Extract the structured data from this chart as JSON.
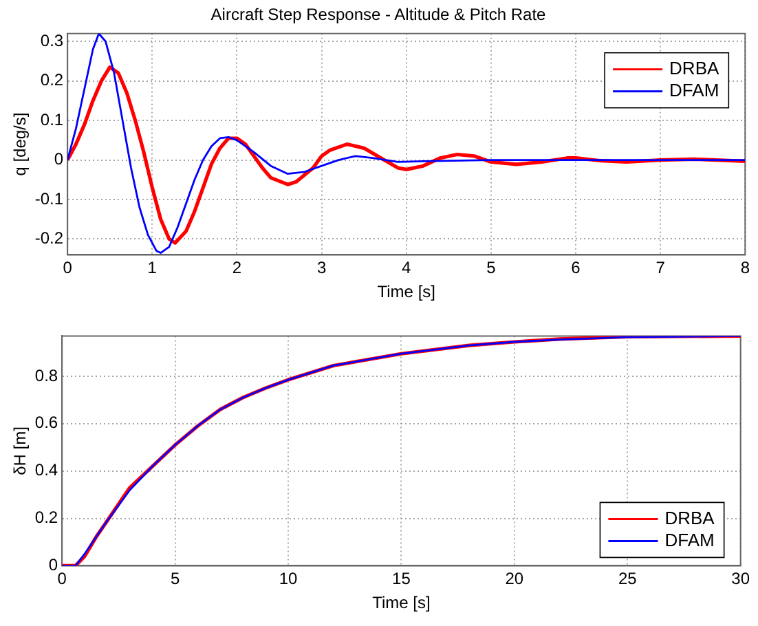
{
  "chart_data": [
    {
      "type": "line",
      "title": "Aircraft Step Response - Altitude & Pitch Rate",
      "xlabel": "Time [s]",
      "ylabel": "q [deg/s]",
      "xlim": [
        0,
        8
      ],
      "xticks": [
        0,
        1,
        2,
        3,
        4,
        5,
        6,
        7,
        8
      ],
      "ylim": [
        -0.24,
        0.32
      ],
      "yticks": [
        -0.2,
        -0.1,
        0,
        0.1,
        0.2,
        0.3
      ],
      "grid": true,
      "legend": "top right",
      "series": [
        {
          "name": "DRBA",
          "color": "#ff0000",
          "x": [
            0,
            0.1,
            0.2,
            0.3,
            0.4,
            0.5,
            0.6,
            0.7,
            0.8,
            0.9,
            1.0,
            1.1,
            1.2,
            1.27,
            1.4,
            1.5,
            1.6,
            1.7,
            1.8,
            1.9,
            2.0,
            2.1,
            2.2,
            2.3,
            2.4,
            2.6,
            2.7,
            2.9,
            3.0,
            3.1,
            3.3,
            3.5,
            3.7,
            3.9,
            4.0,
            4.2,
            4.4,
            4.6,
            4.8,
            5.0,
            5.3,
            5.6,
            5.9,
            6.0,
            6.3,
            6.6,
            7.0,
            7.4,
            8.0
          ],
          "values": [
            0,
            0.04,
            0.09,
            0.15,
            0.2,
            0.235,
            0.22,
            0.17,
            0.1,
            0.02,
            -0.07,
            -0.15,
            -0.2,
            -0.21,
            -0.18,
            -0.13,
            -0.07,
            -0.01,
            0.03,
            0.055,
            0.055,
            0.04,
            0.01,
            -0.02,
            -0.045,
            -0.062,
            -0.055,
            -0.02,
            0.01,
            0.025,
            0.04,
            0.03,
            0.005,
            -0.02,
            -0.024,
            -0.015,
            0.005,
            0.014,
            0.01,
            -0.005,
            -0.011,
            -0.005,
            0.005,
            0.005,
            -0.002,
            -0.005,
            0,
            0.002,
            -0.003
          ]
        },
        {
          "name": "DFAM",
          "color": "#0000ff",
          "x": [
            0,
            0.1,
            0.2,
            0.3,
            0.37,
            0.45,
            0.55,
            0.65,
            0.75,
            0.85,
            0.95,
            1.05,
            1.1,
            1.2,
            1.3,
            1.4,
            1.5,
            1.6,
            1.7,
            1.8,
            1.9,
            2.0,
            2.2,
            2.4,
            2.6,
            2.8,
            3.0,
            3.2,
            3.4,
            3.6,
            3.9,
            4.2,
            5.0,
            6.0,
            8.0
          ],
          "values": [
            0,
            0.08,
            0.18,
            0.28,
            0.32,
            0.3,
            0.22,
            0.1,
            -0.02,
            -0.12,
            -0.19,
            -0.23,
            -0.235,
            -0.22,
            -0.17,
            -0.11,
            -0.05,
            0,
            0.035,
            0.055,
            0.058,
            0.05,
            0.02,
            -0.015,
            -0.035,
            -0.03,
            -0.015,
            0,
            0.01,
            0.005,
            -0.005,
            -0.003,
            0,
            0,
            0
          ]
        }
      ]
    },
    {
      "type": "line",
      "xlabel": "Time [s]",
      "ylabel": "δH [m]",
      "xlim": [
        0,
        30
      ],
      "xticks": [
        0,
        5,
        10,
        15,
        20,
        25,
        30
      ],
      "ylim": [
        0,
        0.97
      ],
      "yticks": [
        0,
        0.2,
        0.4,
        0.6,
        0.8
      ],
      "grid": true,
      "legend": "bottom right",
      "series": [
        {
          "name": "DRBA",
          "color": "#ff0000",
          "x": [
            0,
            0.6,
            1,
            1.5,
            2,
            3,
            4,
            5,
            6,
            7,
            8,
            9,
            10,
            12,
            15,
            18,
            20,
            22,
            25,
            30
          ],
          "values": [
            0,
            0,
            0.04,
            0.12,
            0.19,
            0.33,
            0.42,
            0.51,
            0.59,
            0.66,
            0.71,
            0.75,
            0.785,
            0.845,
            0.895,
            0.93,
            0.945,
            0.957,
            0.967,
            0.97
          ]
        },
        {
          "name": "DFAM",
          "color": "#0000ff",
          "x": [
            0,
            0.6,
            1,
            1.5,
            2,
            3,
            4,
            5,
            6,
            7,
            8,
            9,
            10,
            12,
            15,
            18,
            20,
            22,
            25,
            30
          ],
          "values": [
            0,
            0,
            0.05,
            0.12,
            0.19,
            0.32,
            0.42,
            0.51,
            0.59,
            0.66,
            0.71,
            0.75,
            0.785,
            0.845,
            0.895,
            0.93,
            0.945,
            0.955,
            0.965,
            0.97
          ]
        }
      ]
    }
  ]
}
